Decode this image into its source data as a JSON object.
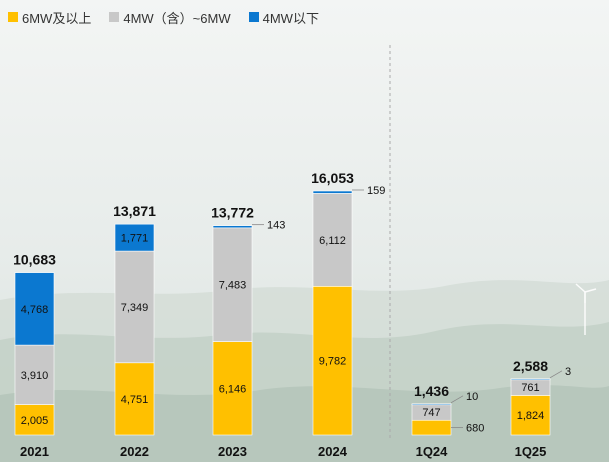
{
  "colors": {
    "yellow": "#ffc000",
    "gray": "#c8c8c8",
    "blue": "#0b78d0",
    "text": "#111111",
    "divider": "#aaaaaa"
  },
  "chart_data": {
    "type": "bar",
    "stacked": true,
    "title": "",
    "xlabel": "",
    "ylabel": "",
    "legend_position": "top-left",
    "grid": false,
    "categories": [
      "2021",
      "2022",
      "2023",
      "2024",
      "1Q24",
      "1Q25"
    ],
    "totals": [
      "10,683",
      "13,871",
      "13,772",
      "16,053",
      "1,436",
      "2,588"
    ],
    "series": [
      {
        "name": "6MW及以上",
        "color": "#ffc000",
        "values": [
          2005,
          4751,
          6146,
          9782,
          680,
          1824
        ],
        "labels": [
          "2,005",
          "4,751",
          "6,146",
          "9,782",
          "680",
          "1,824"
        ]
      },
      {
        "name": "4MW（含）~6MW",
        "color": "#c8c8c8",
        "values": [
          3910,
          7349,
          7483,
          6112,
          747,
          761
        ],
        "labels": [
          "3,910",
          "7,349",
          "7,483",
          "6,112",
          "747",
          "761"
        ]
      },
      {
        "name": "4MW以下",
        "color": "#0b78d0",
        "values": [
          4768,
          1771,
          143,
          159,
          10,
          3
        ],
        "labels": [
          "4,768",
          "1,771",
          "143",
          "159",
          "10",
          "3"
        ]
      }
    ]
  }
}
